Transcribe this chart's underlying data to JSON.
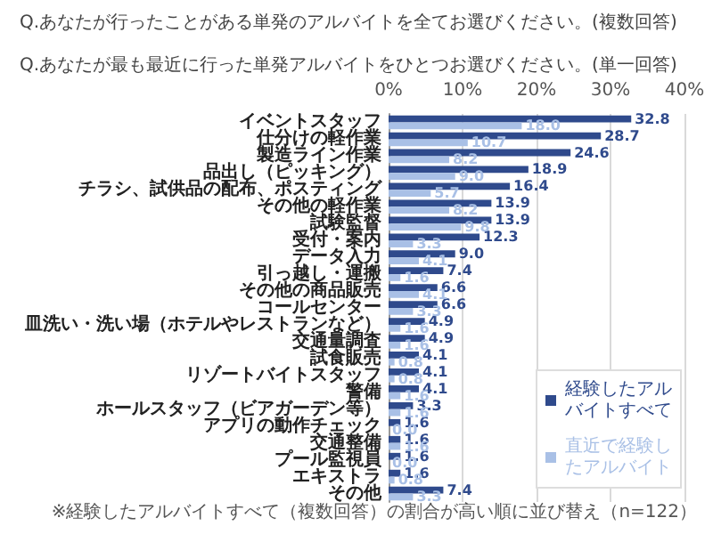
{
  "chart_data": {
    "type": "bar",
    "orientation": "horizontal",
    "title": "Q.あなたが行ったことがある単発のアルバイトを全てお選びください。(複数回答)",
    "subtitle": "Q.あなたが最も最近に行った単発アルバイトをひとつお選びください。(単一回答)",
    "categories": [
      "イベントスタッフ",
      "仕分けの軽作業",
      "製造ライン作業",
      "品出し（ピッキング）",
      "チラシ、試供品の配布、ポスティング",
      "その他の軽作業",
      "試験監督",
      "受付・案内",
      "データ入力",
      "引っ越し・運搬",
      "その他の商品販売",
      "コールセンター",
      "皿洗い・洗い場（ホテルやレストランなど）",
      "交通量調査",
      "試食販売",
      "リゾートバイトスタッフ",
      "警備",
      "ホールスタッフ（ビアガーデン等）",
      "アプリの動作チェック",
      "交通整備",
      "プール監視員",
      "エキストラ",
      "その他"
    ],
    "series": [
      {
        "name": "経験したアルバイトすべて",
        "color": "#2f4a8c",
        "values": [
          32.8,
          28.7,
          24.6,
          18.9,
          16.4,
          13.9,
          13.9,
          12.3,
          9.0,
          7.4,
          6.6,
          6.6,
          4.9,
          4.9,
          4.1,
          4.1,
          4.1,
          3.3,
          1.6,
          1.6,
          1.6,
          1.6,
          7.4
        ],
        "value_labels": [
          "32.8",
          "28.7",
          "24.6",
          "18.9",
          "16.4",
          "13.9",
          "13.9",
          "12.3",
          "9.0",
          "7.4",
          "6.6",
          "6.6",
          "4.9",
          "4.9",
          "4.1",
          "4.1",
          "4.1",
          "3.3",
          "1.6",
          "1.6",
          "1.6",
          "1.6",
          "7.4"
        ]
      },
      {
        "name": "直近で経験したアルバイト",
        "color": "#a9c0e6",
        "values": [
          18.0,
          10.7,
          8.2,
          9.0,
          5.7,
          8.2,
          9.8,
          3.3,
          4.1,
          1.6,
          4.1,
          3.3,
          1.6,
          1.6,
          0.8,
          0.8,
          1.6,
          1.6,
          0.0,
          1.6,
          0.0,
          0.8,
          3.3
        ],
        "value_labels": [
          "18.0",
          "10.7",
          "8.2",
          "9.0",
          "5.7",
          "8.2",
          "9.8",
          "3.3",
          "4.1",
          "1.6",
          "4.1",
          "3.3",
          "1.6",
          "1.6",
          "0.8",
          "0.8",
          "1.6",
          "1.6",
          "0.0",
          "1.6",
          "0.0",
          "0.8",
          "3.3"
        ]
      }
    ],
    "xlim": [
      0,
      40
    ],
    "xticks": [
      {
        "value": 0,
        "label": "0%"
      },
      {
        "value": 10,
        "label": "10%"
      },
      {
        "value": 20,
        "label": "20%"
      },
      {
        "value": 30,
        "label": "30%"
      },
      {
        "value": 40,
        "label": "40%"
      }
    ],
    "grid": "x",
    "legend": "bottom right",
    "annotations": [
      "※経験したアルバイトすべて（複数回答）の割合が高い順に並び替え（n=122）"
    ]
  }
}
